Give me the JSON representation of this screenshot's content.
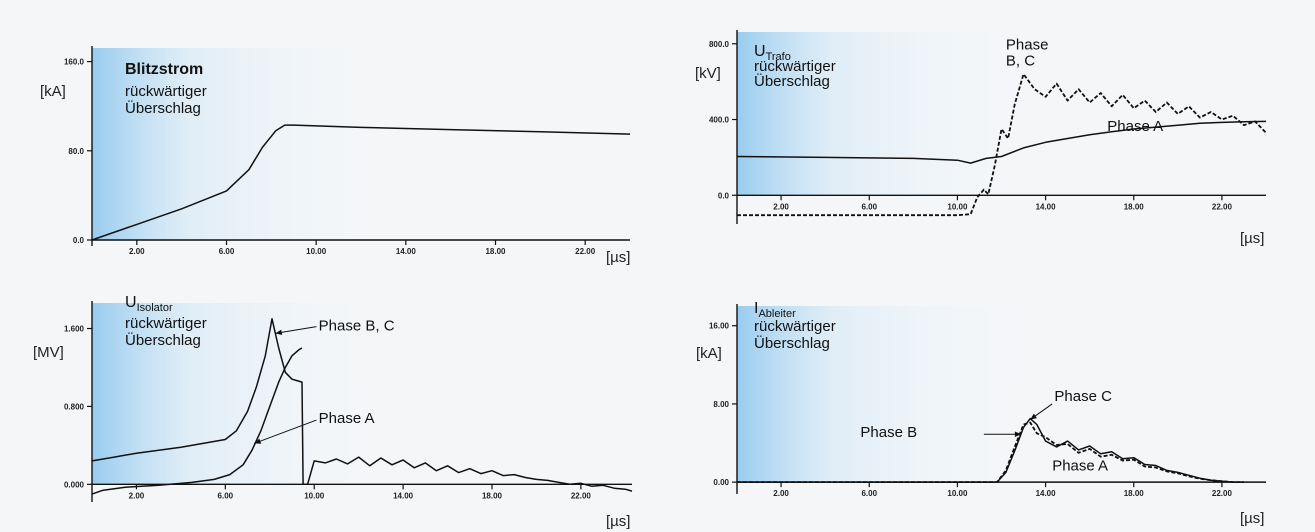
{
  "chart_data": [
    {
      "type": "line",
      "id": "p1",
      "title": "Blitzstrom",
      "title_sub": "",
      "subtitle": [
        "rückwärtiger",
        "Überschlag"
      ],
      "ylabel": "[kA]",
      "xlabel": "[µs]",
      "xlim": [
        0,
        24
      ],
      "ylim": [
        0,
        165
      ],
      "x_ticks": [
        2,
        6,
        10,
        14,
        18,
        22
      ],
      "x_tick_labels": [
        "2.00",
        "6.00",
        "10.00",
        "14.00",
        "18.00",
        "22.00"
      ],
      "y_ticks": [
        0,
        80,
        160
      ],
      "y_tick_labels": [
        "0.0",
        "80.0",
        "160.0"
      ],
      "series": [
        {
          "style": "solid",
          "x": [
            0,
            2,
            4,
            6,
            7,
            7.6,
            8.2,
            8.6,
            9,
            12,
            16,
            20,
            24
          ],
          "y": [
            0,
            14,
            28,
            44,
            63,
            83,
            98,
            103,
            103,
            101,
            99,
            97,
            95
          ]
        }
      ],
      "annotations": []
    },
    {
      "type": "line",
      "id": "p2",
      "title": "U",
      "title_sub": "Trafo",
      "subtitle": [
        "rückwärtiger",
        "Überschlag"
      ],
      "ylabel": "[kV]",
      "xlabel": "[µs]",
      "xlim": [
        0,
        24
      ],
      "ylim": [
        -120,
        820
      ],
      "x_ticks": [
        2,
        6,
        10,
        14,
        18,
        22
      ],
      "x_tick_labels": [
        "2.00",
        "6.00",
        "10.00",
        "14.00",
        "18.00",
        "22.00"
      ],
      "y_ticks": [
        0,
        400,
        800
      ],
      "y_tick_labels": [
        "0.0",
        "400.0",
        "800.0"
      ],
      "series": [
        {
          "name": "Phase A",
          "style": "solid",
          "x": [
            0,
            4,
            8,
            10,
            10.6,
            11.3,
            12,
            13,
            14,
            15,
            16,
            17,
            18,
            19,
            20,
            21,
            22,
            23,
            24
          ],
          "y": [
            205,
            200,
            195,
            185,
            170,
            195,
            205,
            250,
            280,
            300,
            320,
            335,
            350,
            360,
            370,
            380,
            385,
            388,
            390
          ]
        },
        {
          "name": "Phase B, C",
          "style": "dashed",
          "x": [
            0,
            4,
            8,
            10,
            10.6,
            10.9,
            11.2,
            11.4,
            11.7,
            12,
            12.3,
            12.6,
            13,
            13.5,
            14,
            14.5,
            15,
            15.5,
            16,
            16.5,
            17,
            17.5,
            18,
            18.5,
            19,
            19.5,
            20,
            20.5,
            21,
            21.5,
            22,
            22.5,
            23,
            23.5,
            24
          ],
          "y": [
            -105,
            -105,
            -105,
            -105,
            -100,
            -10,
            30,
            5,
            160,
            350,
            300,
            480,
            640,
            560,
            520,
            590,
            500,
            560,
            490,
            540,
            470,
            530,
            460,
            500,
            440,
            490,
            430,
            470,
            410,
            440,
            400,
            420,
            370,
            390,
            330
          ]
        }
      ],
      "annotations": [
        {
          "text": [
            "Phase",
            "B, C"
          ],
          "x": 12.2,
          "y": 770
        },
        {
          "text": [
            "Phase A"
          ],
          "x": 16.8,
          "y": 340
        }
      ]
    },
    {
      "type": "line",
      "id": "p3",
      "title": "U",
      "title_sub": "Isolator",
      "subtitle": [
        "rückwärtiger",
        "Überschlag"
      ],
      "ylabel": "[MV]",
      "xlabel": "[µs]",
      "xlim": [
        0,
        24.3
      ],
      "ylim": [
        -0.12,
        1.78
      ],
      "x_ticks": [
        2,
        6,
        10,
        14,
        18,
        22
      ],
      "x_tick_labels": [
        "2.00",
        "6.00",
        "10.00",
        "14.00",
        "18.00",
        "22.00"
      ],
      "y_ticks": [
        0,
        0.8,
        1.6
      ],
      "y_tick_labels": [
        "0.000",
        "0.800",
        "1.600"
      ],
      "series": [
        {
          "name": "Phase B, C",
          "style": "solid",
          "x": [
            0,
            1,
            2,
            3,
            4,
            5,
            6,
            6.5,
            7,
            7.4,
            7.8,
            8.1,
            8.4,
            8.7,
            9,
            9.3,
            9.45,
            9.5,
            9.7,
            10,
            10.5,
            11,
            11.5,
            12,
            12.5,
            13,
            13.5,
            14,
            14.5,
            15,
            15.5,
            16,
            16.5,
            17,
            17.5,
            18,
            18.5,
            19,
            19.5,
            20,
            20.5,
            21,
            21.5,
            22,
            22.5,
            23,
            23.5,
            24,
            24.3
          ],
          "y": [
            0.24,
            0.28,
            0.32,
            0.35,
            0.38,
            0.42,
            0.46,
            0.55,
            0.75,
            1.0,
            1.32,
            1.7,
            1.4,
            1.15,
            1.08,
            1.06,
            1.05,
            0.0,
            0.0,
            0.24,
            0.22,
            0.26,
            0.21,
            0.28,
            0.19,
            0.27,
            0.2,
            0.25,
            0.17,
            0.22,
            0.14,
            0.19,
            0.12,
            0.16,
            0.11,
            0.14,
            0.09,
            0.1,
            0.07,
            0.05,
            0.04,
            0.02,
            0.0,
            0.01,
            -0.02,
            -0.01,
            -0.04,
            -0.05,
            -0.07
          ]
        },
        {
          "name": "Phase A",
          "style": "solid",
          "x": [
            0,
            0.5,
            1.5,
            3,
            4.5,
            5.5,
            6.2,
            6.8,
            7.2,
            7.6,
            8,
            8.4,
            8.7,
            9,
            9.3,
            9.45
          ],
          "y": [
            -0.1,
            -0.06,
            -0.03,
            -0.01,
            0.02,
            0.05,
            0.1,
            0.2,
            0.35,
            0.55,
            0.8,
            1.05,
            1.2,
            1.32,
            1.38,
            1.4
          ]
        }
      ],
      "annotations": [
        {
          "text": [
            "Phase B, C"
          ],
          "x": 10.2,
          "y": 1.58
        },
        {
          "text": [
            "Phase A"
          ],
          "x": 10.2,
          "y": 0.63
        }
      ]
    },
    {
      "type": "line",
      "id": "p4",
      "title": "I",
      "title_sub": "Ableiter",
      "subtitle": [
        "rückwärtiger",
        "Überschlag"
      ],
      "ylabel": "[kA]",
      "xlabel": "[µs]",
      "xlim": [
        0,
        24
      ],
      "ylim": [
        -0.6,
        17.2
      ],
      "x_ticks": [
        2,
        6,
        10,
        14,
        18,
        22
      ],
      "x_tick_labels": [
        "2.00",
        "6.00",
        "10.00",
        "14.00",
        "18.00",
        "22.00"
      ],
      "y_ticks": [
        0,
        8,
        16
      ],
      "y_tick_labels": [
        "0.00",
        "8.00",
        "16.00"
      ],
      "series": [
        {
          "name": "Phase C",
          "style": "solid",
          "x": [
            0,
            11.8,
            12.2,
            12.6,
            13,
            13.3,
            13.6,
            14,
            14.5,
            15,
            15.5,
            16,
            16.5,
            17,
            17.5,
            18,
            18.5,
            19,
            19.5,
            20,
            20.5,
            21,
            21.5,
            22,
            22.5,
            23
          ],
          "y": [
            0,
            0,
            1.0,
            3.2,
            5.6,
            6.5,
            5.9,
            4.2,
            3.6,
            4.2,
            3.3,
            3.7,
            2.9,
            3.1,
            2.4,
            2.5,
            1.8,
            1.7,
            1.2,
            1.0,
            0.7,
            0.4,
            0.2,
            0.1,
            0.0,
            0.0
          ]
        },
        {
          "name": "Phase B",
          "style": "dashed",
          "x": [
            0,
            11.8,
            12.2,
            12.6,
            13,
            13.3,
            13.6,
            14,
            14.5,
            15,
            15.5,
            16,
            16.5,
            17,
            17.5,
            18,
            18.5,
            19,
            19.5,
            20,
            20.5,
            21,
            21.5,
            22,
            22.5,
            23
          ],
          "y": [
            0,
            0,
            1.2,
            3.6,
            5.9,
            6.1,
            5.0,
            4.6,
            3.8,
            3.9,
            3.0,
            3.4,
            2.6,
            2.8,
            2.2,
            2.3,
            1.6,
            1.5,
            1.1,
            0.9,
            0.6,
            0.35,
            0.2,
            0.1,
            0.0,
            0.0
          ]
        }
      ],
      "annotations": [
        {
          "text": [
            "Phase C"
          ],
          "x": 14.4,
          "y": 8.3
        },
        {
          "text": [
            "Phase B"
          ],
          "x": 5.6,
          "y": 4.6
        },
        {
          "text": [
            "Phase A"
          ],
          "x": 14.3,
          "y": 1.2
        }
      ]
    }
  ]
}
